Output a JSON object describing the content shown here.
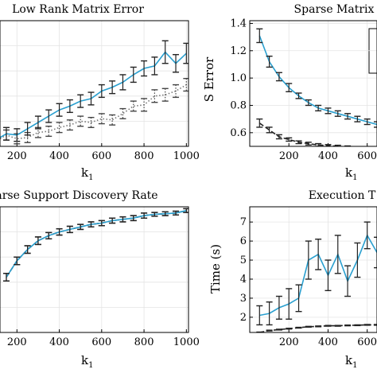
{
  "chart_data": [
    {
      "type": "line",
      "title": "Low Rank Matrix Error",
      "xlabel_main": "k",
      "xlabel_sub": "1",
      "ylabel": "",
      "xlim": [
        120,
        1010
      ],
      "ylim": [
        0.0,
        1.0
      ],
      "xticks": [
        200,
        400,
        600,
        800,
        1000
      ],
      "yticks": [],
      "grid": true,
      "x": [
        50,
        100,
        150,
        200,
        250,
        300,
        350,
        400,
        450,
        500,
        550,
        600,
        650,
        700,
        750,
        800,
        850,
        900,
        950,
        1000
      ],
      "series": [
        {
          "style": "solid",
          "color": "#2aa0d0",
          "values": [
            0.02,
            0.05,
            0.1,
            0.09,
            0.14,
            0.19,
            0.24,
            0.29,
            0.32,
            0.36,
            0.38,
            0.44,
            0.47,
            0.51,
            0.57,
            0.62,
            0.64,
            0.75,
            0.66,
            0.74
          ],
          "err": [
            0.05,
            0.05,
            0.05,
            0.05,
            0.05,
            0.05,
            0.05,
            0.05,
            0.05,
            0.05,
            0.05,
            0.05,
            0.05,
            0.06,
            0.06,
            0.06,
            0.07,
            0.09,
            0.07,
            0.08
          ]
        },
        {
          "style": "dotted",
          "color": "#777777",
          "values": [
            0.02,
            0.04,
            0.09,
            0.06,
            0.07,
            0.11,
            0.12,
            0.15,
            0.17,
            0.2,
            0.19,
            0.22,
            0.21,
            0.26,
            0.32,
            0.33,
            0.4,
            0.41,
            0.44,
            0.49
          ],
          "err": [
            0.04,
            0.04,
            0.04,
            0.04,
            0.04,
            0.04,
            0.04,
            0.04,
            0.04,
            0.04,
            0.04,
            0.04,
            0.04,
            0.04,
            0.04,
            0.05,
            0.05,
            0.05,
            0.05,
            0.05
          ]
        }
      ]
    },
    {
      "type": "line",
      "title": "Sparse Matrix",
      "xlabel_main": "k",
      "xlabel_sub": "1",
      "ylabel": "S Error",
      "xlim": [
        0,
        650
      ],
      "ylim": [
        0.5,
        1.42
      ],
      "xticks": [
        200,
        400,
        600
      ],
      "xtick_labels": [
        "200",
        "400",
        "600"
      ],
      "yticks": [
        0.6,
        0.8,
        1.0,
        1.2,
        1.4
      ],
      "ytick_labels": [
        "0.6",
        "0.8",
        "1.0",
        "1.2",
        "1.4"
      ],
      "grid": true,
      "x": [
        50,
        100,
        150,
        200,
        250,
        300,
        350,
        400,
        450,
        500,
        550,
        600,
        650
      ],
      "series": [
        {
          "style": "solid",
          "color": "#2aa0d0",
          "values": [
            1.31,
            1.12,
            1.01,
            0.93,
            0.87,
            0.82,
            0.78,
            0.76,
            0.74,
            0.72,
            0.7,
            0.68,
            0.66
          ],
          "err": [
            0.05,
            0.04,
            0.03,
            0.03,
            0.02,
            0.02,
            0.02,
            0.02,
            0.02,
            0.02,
            0.02,
            0.02,
            0.02
          ]
        },
        {
          "style": "dashed",
          "color": "#222222",
          "values": [
            0.67,
            0.62,
            0.57,
            0.55,
            0.53,
            0.52,
            0.51,
            0.505,
            0.5,
            0.495,
            0.49,
            0.488,
            0.486
          ],
          "err": [
            0.03,
            0.02,
            0.015,
            0.012,
            0.01,
            0.01,
            0.01,
            0.008,
            0.008,
            0.008,
            0.008,
            0.008,
            0.008
          ]
        }
      ]
    },
    {
      "type": "line",
      "title": "parse Support Discovery Rate",
      "xlabel_main": "k",
      "xlabel_sub": "1",
      "ylabel": "",
      "xlim": [
        120,
        1010
      ],
      "ylim": [
        0.0,
        1.0
      ],
      "xticks": [
        200,
        400,
        600,
        800,
        1000
      ],
      "yticks": [],
      "grid": true,
      "x": [
        150,
        200,
        250,
        300,
        350,
        400,
        450,
        500,
        550,
        600,
        650,
        700,
        750,
        800,
        850,
        900,
        950,
        1000
      ],
      "series": [
        {
          "style": "solid",
          "color": "#2aa0d0",
          "values": [
            0.44,
            0.57,
            0.66,
            0.73,
            0.77,
            0.8,
            0.82,
            0.84,
            0.86,
            0.87,
            0.89,
            0.9,
            0.91,
            0.93,
            0.94,
            0.945,
            0.95,
            0.97
          ],
          "err": [
            0.03,
            0.03,
            0.03,
            0.03,
            0.025,
            0.025,
            0.025,
            0.02,
            0.02,
            0.02,
            0.02,
            0.02,
            0.02,
            0.02,
            0.015,
            0.015,
            0.015,
            0.015
          ]
        },
        {
          "style": "dashed",
          "color": "#222222",
          "values": [
            0.44,
            0.57,
            0.66,
            0.73,
            0.77,
            0.8,
            0.82,
            0.84,
            0.86,
            0.87,
            0.89,
            0.9,
            0.91,
            0.93,
            0.94,
            0.945,
            0.95,
            0.97
          ],
          "err": [
            0.03,
            0.03,
            0.03,
            0.03,
            0.025,
            0.025,
            0.025,
            0.02,
            0.02,
            0.02,
            0.02,
            0.02,
            0.02,
            0.02,
            0.015,
            0.015,
            0.015,
            0.015
          ]
        }
      ]
    },
    {
      "type": "line",
      "title": "Execution T",
      "xlabel_main": "k",
      "xlabel_sub": "1",
      "ylabel": "Time (s)",
      "xlim": [
        0,
        650
      ],
      "ylim": [
        1.2,
        7.8
      ],
      "xticks": [
        200,
        400,
        600
      ],
      "xtick_labels": [
        "200",
        "400",
        "600"
      ],
      "yticks": [
        2,
        3,
        4,
        5,
        6,
        7
      ],
      "ytick_labels": [
        "2",
        "3",
        "4",
        "5",
        "6",
        "7"
      ],
      "grid": true,
      "x": [
        50,
        100,
        150,
        200,
        250,
        300,
        350,
        400,
        450,
        500,
        550,
        600,
        650
      ],
      "series": [
        {
          "style": "solid",
          "color": "#2aa0d0",
          "values": [
            2.1,
            2.2,
            2.5,
            2.7,
            3.0,
            5.0,
            5.3,
            4.2,
            5.3,
            3.9,
            5.0,
            6.3,
            5.4
          ],
          "err": [
            0.5,
            0.6,
            0.6,
            0.8,
            0.7,
            1.0,
            0.8,
            0.8,
            1.0,
            0.8,
            0.9,
            0.7,
            0.8
          ]
        },
        {
          "style": "dashed",
          "color": "#222222",
          "values": [
            1.2,
            1.3,
            1.35,
            1.4,
            1.45,
            1.5,
            1.52,
            1.55,
            1.55,
            1.57,
            1.58,
            1.6,
            1.6
          ],
          "err": [
            0.02,
            0.02,
            0.02,
            0.02,
            0.02,
            0.02,
            0.02,
            0.02,
            0.02,
            0.02,
            0.02,
            0.02,
            0.02
          ]
        }
      ]
    }
  ]
}
